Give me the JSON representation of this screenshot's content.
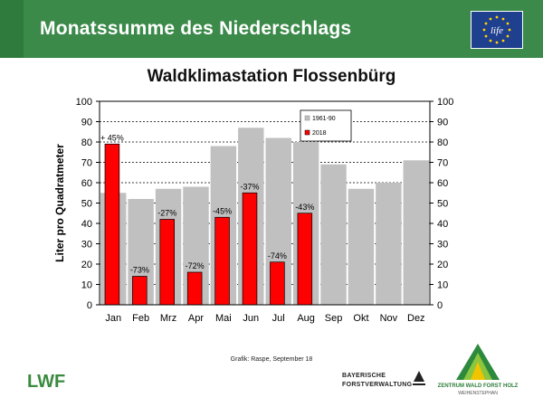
{
  "header": {
    "title": "Monatssumme des Niederschlags"
  },
  "logos": {
    "life": "life",
    "lwf": "LWF",
    "bayerische_line1": "BAYERISCHE",
    "bayerische_line2": "FORSTVERWALTUNG",
    "zentrum_line1": "ZENTRUM WALD FORST HOLZ",
    "zentrum_line2": "WEIHENSTEPHAN"
  },
  "credit": "Grafik: Raspe, September 18",
  "chart_data": {
    "type": "bar",
    "title": "Waldklimastation Flossenbürg",
    "ylabel": "Liter pro Quadratmeter",
    "xlabel": "",
    "ylim": [
      0,
      100
    ],
    "yticks": [
      0,
      10,
      20,
      30,
      40,
      50,
      60,
      70,
      80,
      90,
      100
    ],
    "grid": true,
    "legend_position": "top-center",
    "categories": [
      "Jan",
      "Feb",
      "Mrz",
      "Apr",
      "Mai",
      "Jun",
      "Jul",
      "Aug",
      "Sep",
      "Okt",
      "Nov",
      "Dez"
    ],
    "series": [
      {
        "name": "1961-90",
        "color": "#c0c0c0",
        "values": [
          55,
          52,
          57,
          58,
          78,
          87,
          82,
          80,
          69,
          57,
          60,
          71
        ]
      },
      {
        "name": "2018",
        "color": "#ff0000",
        "values": [
          79,
          14,
          42,
          16,
          43,
          55,
          21,
          45,
          null,
          null,
          null,
          null
        ]
      }
    ],
    "data_labels": [
      "+ 45%",
      "-73%",
      "-27%",
      "-72%",
      "-45%",
      "-37%",
      "-74%",
      "-43%",
      "",
      "",
      "",
      ""
    ]
  }
}
